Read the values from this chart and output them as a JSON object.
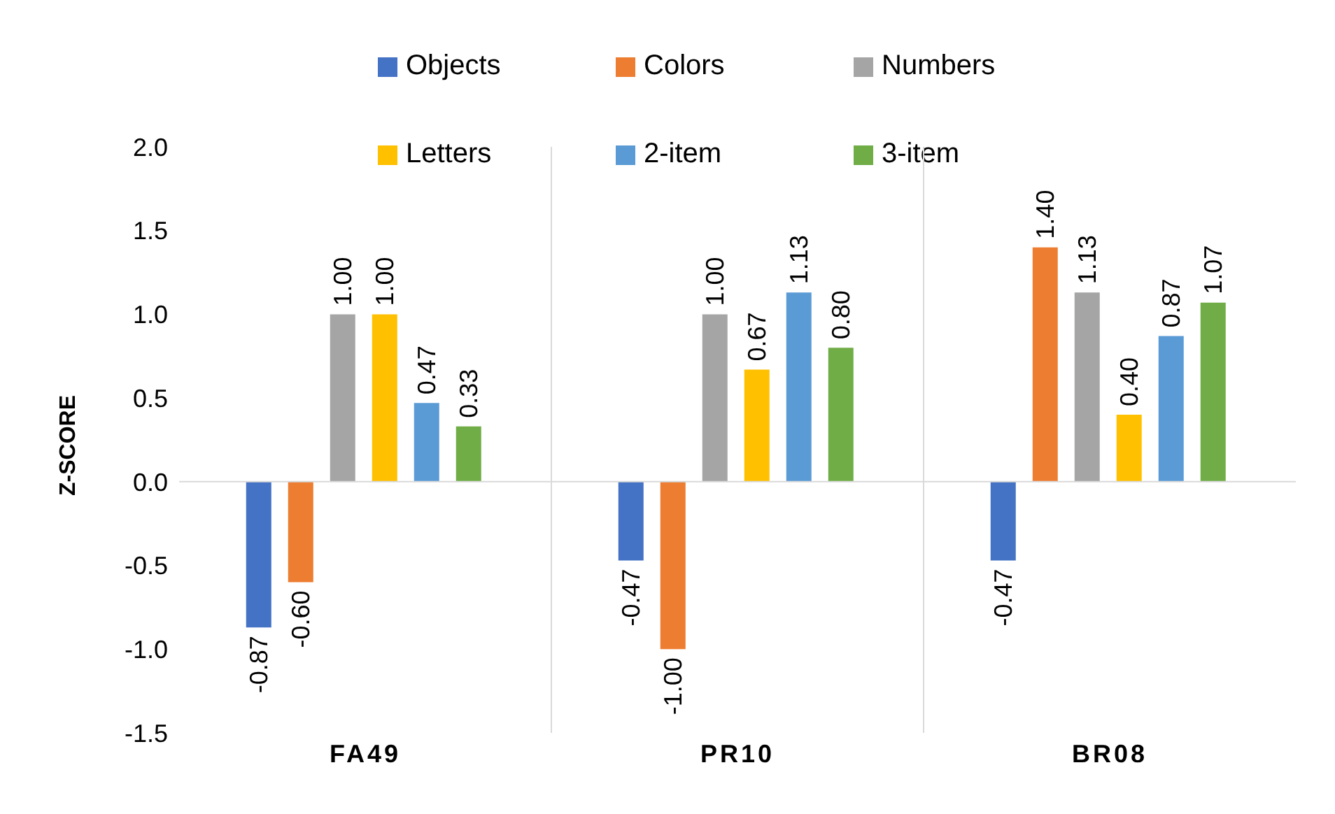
{
  "chart_data": {
    "type": "bar",
    "ylabel": "Z-SCORE",
    "categories": [
      "FA49",
      "PR10",
      "BR08"
    ],
    "series": [
      {
        "name": "Objects",
        "color": "#4472c4",
        "values": [
          -0.87,
          -0.47,
          -0.47
        ],
        "value_labels": [
          "-0.87",
          "-0.47",
          "-0.47"
        ]
      },
      {
        "name": "Colors",
        "color": "#ed7d31",
        "values": [
          -0.6,
          -1.0,
          1.4
        ],
        "value_labels": [
          "-0.60",
          "-1.00",
          "1.40"
        ]
      },
      {
        "name": "Numbers",
        "color": "#a5a5a5",
        "values": [
          1.0,
          1.0,
          1.13
        ],
        "value_labels": [
          "1.00",
          "1.00",
          "1.13"
        ]
      },
      {
        "name": "Letters",
        "color": "#ffc000",
        "values": [
          1.0,
          0.67,
          0.4
        ],
        "value_labels": [
          "1.00",
          "0.67",
          "0.40"
        ]
      },
      {
        "name": "2-item",
        "color": "#5b9bd5",
        "values": [
          0.47,
          1.13,
          0.87
        ],
        "value_labels": [
          "0.47",
          "1.13",
          "0.87"
        ]
      },
      {
        "name": "3-item",
        "color": "#70ad47",
        "values": [
          0.33,
          0.8,
          1.07
        ],
        "value_labels": [
          "0.33",
          "0.80",
          "1.07"
        ]
      }
    ],
    "ylim": [
      -1.5,
      2.0
    ],
    "yticks": [
      {
        "value": -1.5,
        "label": "-1.5"
      },
      {
        "value": -1,
        "label": "-1.0"
      },
      {
        "value": -0.5,
        "label": "-0.5"
      },
      {
        "value": 0,
        "label": "0.0"
      },
      {
        "value": 0.5,
        "label": "0.5"
      },
      {
        "value": 1,
        "label": "1.0"
      },
      {
        "value": 1.5,
        "label": "1.5"
      },
      {
        "value": 2,
        "label": "2.0"
      }
    ],
    "grid": "x",
    "legend": "top",
    "ref_lines": [
      {
        "axis": "y",
        "value": 0,
        "color": "#d9d9d9"
      }
    ]
  }
}
